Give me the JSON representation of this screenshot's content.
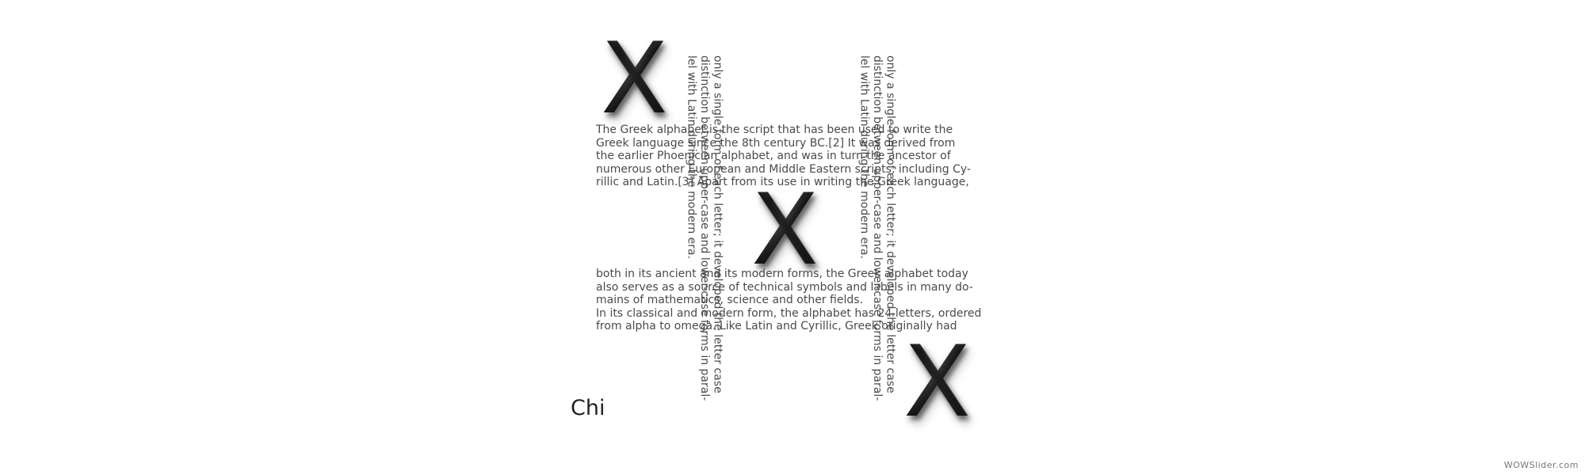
{
  "slide": {
    "letters": [
      "X",
      "X",
      "X"
    ],
    "paragraph_top": [
      "The Greek alphabet is the script that has been used to write the",
      "Greek language since the 8th century BC.[2] It was derived from",
      "the earlier Phoenician alphabet, and was in turn the ancestor of",
      "numerous other European and Middle Eastern scripts, including Cy-",
      "rillic and Latin.[3] Apart from its use in writing the Greek language,"
    ],
    "paragraph_bottom": [
      "both in its ancient and its modern forms, the Greek alphabet today",
      "also serves as a source of technical symbols and labels in many do-",
      "mains of mathematics, science and other fields.",
      "In its classical and modern form, the alphabet has 24 letters, ordered",
      "from alpha to omega. Like Latin and Cyrillic, Greek originally had"
    ],
    "vertical_text": [
      "only a single form of each letter; it developed the letter case",
      "distinction between upper-case and lower-case forms in paral-",
      "lel with Latin during the modern era."
    ],
    "caption": "Chi"
  },
  "watermark": "WOWSlider.com"
}
